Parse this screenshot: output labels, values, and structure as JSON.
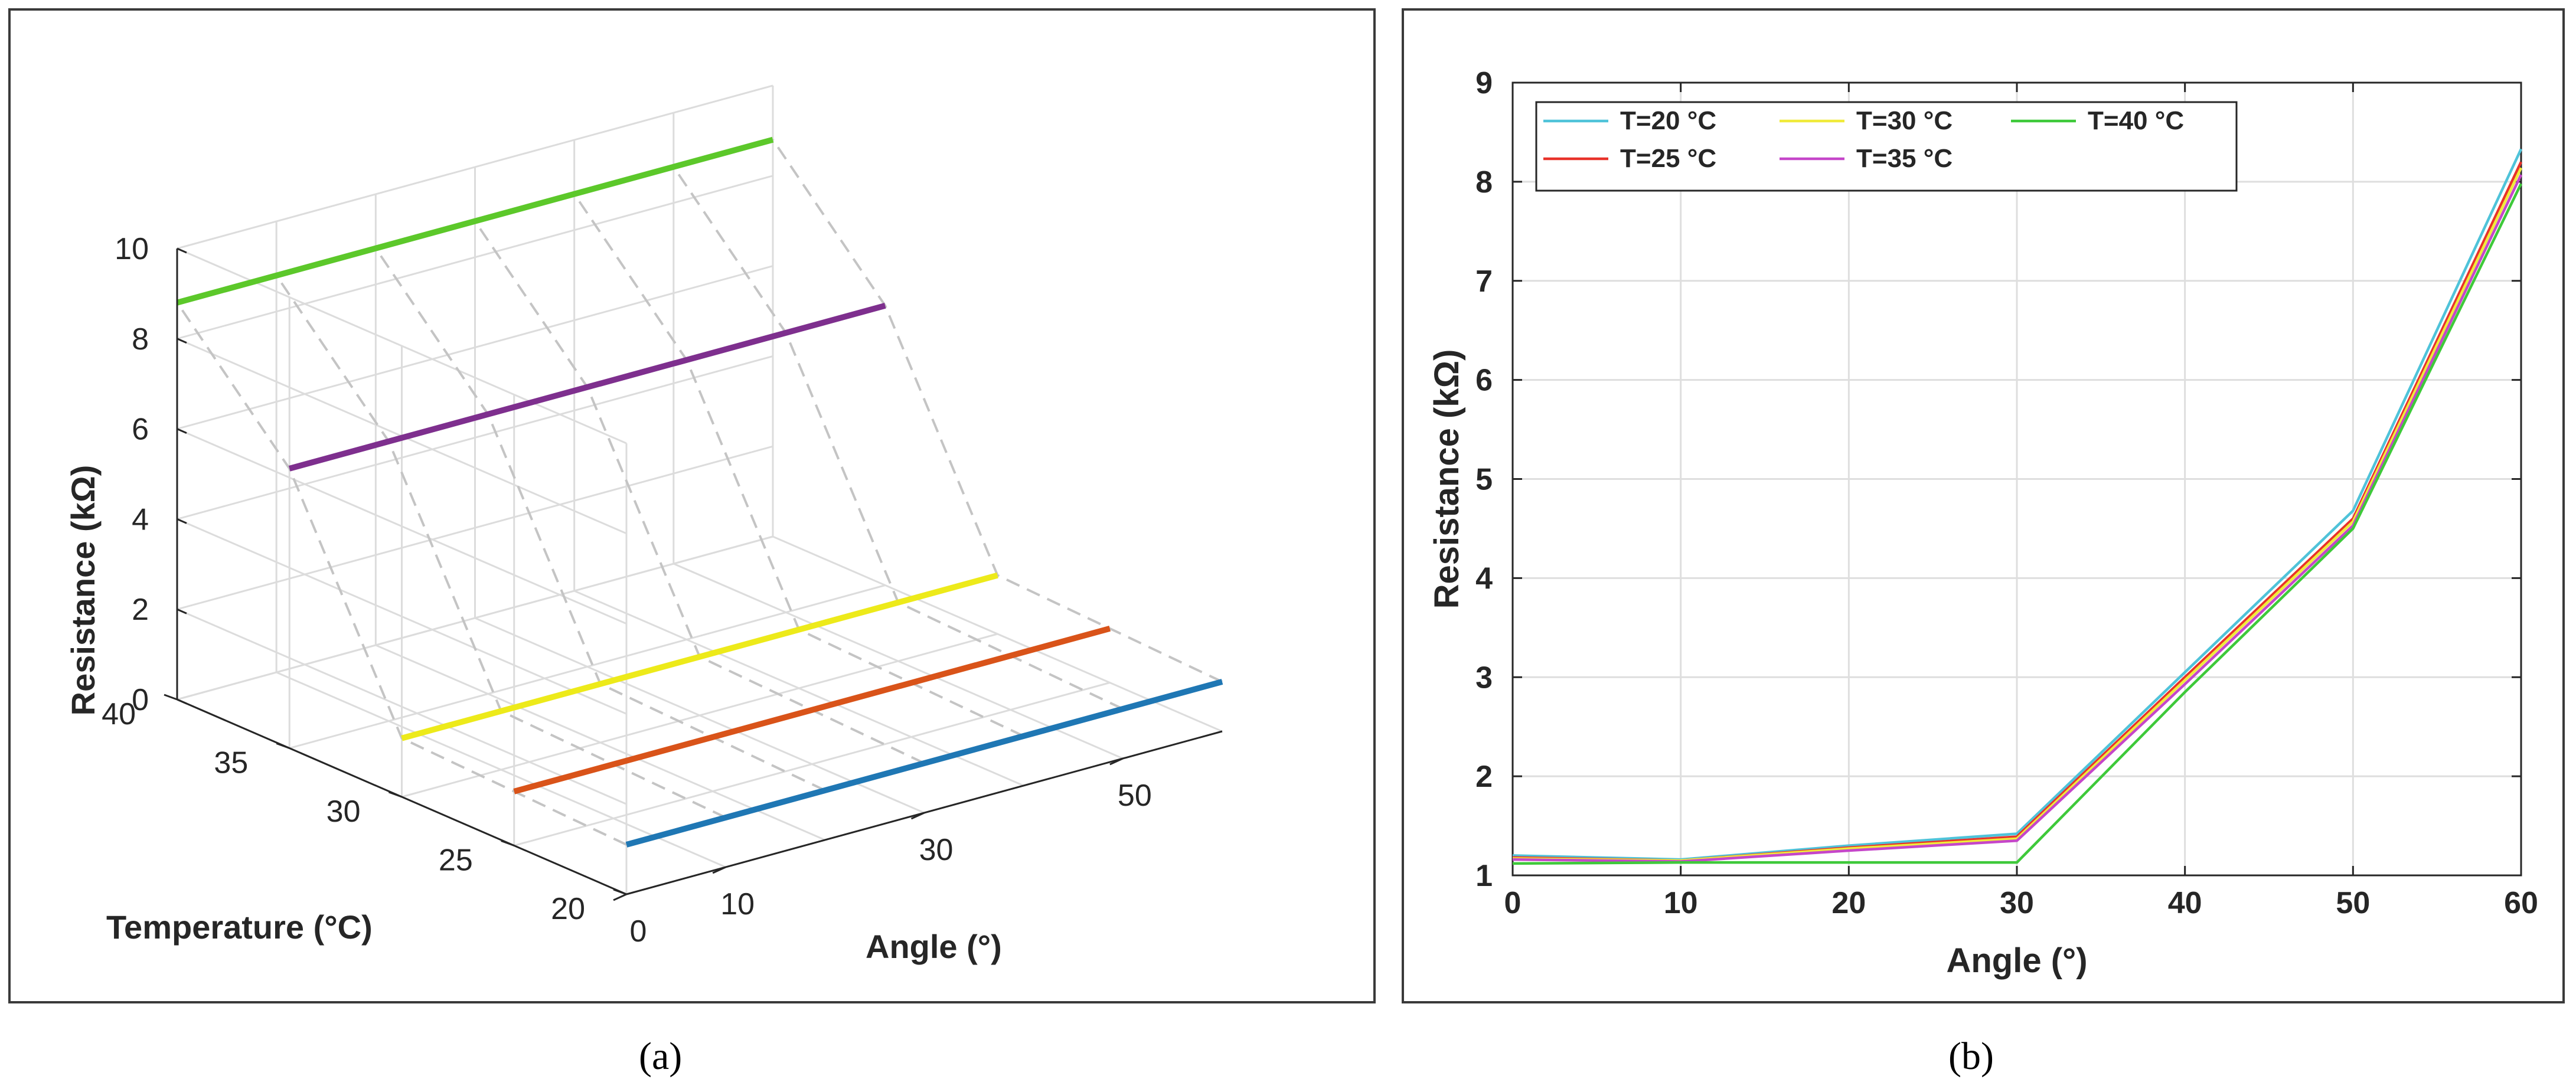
{
  "captions": {
    "a": "(a)",
    "b": "(b)"
  },
  "chart_data": [
    {
      "type": "line",
      "projection": "3d",
      "panel": "a",
      "title": "",
      "xlabel": "Angle (°)",
      "ylabel": "Temperature (°C)",
      "zlabel": "Resistance (kΩ)",
      "xlim": [
        0,
        60
      ],
      "ylim": [
        20,
        40
      ],
      "zlim": [
        0,
        10
      ],
      "x_ticks": [
        "0",
        "10",
        "30",
        "50"
      ],
      "y_ticks": [
        "20",
        "25",
        "30",
        "35",
        "40"
      ],
      "z_ticks": [
        "0",
        "2",
        "4",
        "6",
        "8",
        "10"
      ],
      "grid": true,
      "series": [
        {
          "name": "T=20 °C",
          "temperature": 20,
          "angle_range": [
            0,
            60
          ],
          "resistance": 1.1,
          "color": "#1f77b4"
        },
        {
          "name": "T=25 °C",
          "temperature": 25,
          "angle_range": [
            0,
            60
          ],
          "resistance": 1.2,
          "color": "#d95319"
        },
        {
          "name": "T=30 °C",
          "temperature": 30,
          "angle_range": [
            0,
            60
          ],
          "resistance": 1.3,
          "color": "#edea1a"
        },
        {
          "name": "T=35 °C",
          "temperature": 35,
          "angle_range": [
            0,
            60
          ],
          "resistance": 6.2,
          "color": "#7e2f8e"
        },
        {
          "name": "T=40 °C",
          "temperature": 40,
          "angle_range": [
            0,
            60
          ],
          "resistance": 8.8,
          "color": "#5cc82a"
        }
      ],
      "dashed_curves": [
        {
          "angle": 0,
          "points": [
            [
              20,
              1.1
            ],
            [
              25,
              1.2
            ],
            [
              30,
              1.3
            ],
            [
              35,
              6.2
            ],
            [
              40,
              8.8
            ]
          ]
        },
        {
          "angle": 10,
          "points": [
            [
              20,
              1.1
            ],
            [
              25,
              1.2
            ],
            [
              30,
              1.3
            ],
            [
              35,
              6.2
            ],
            [
              40,
              8.8
            ]
          ]
        },
        {
          "angle": 20,
          "points": [
            [
              20,
              1.1
            ],
            [
              25,
              1.2
            ],
            [
              30,
              1.3
            ],
            [
              35,
              6.2
            ],
            [
              40,
              8.8
            ]
          ]
        },
        {
          "angle": 30,
          "points": [
            [
              20,
              1.1
            ],
            [
              25,
              1.2
            ],
            [
              30,
              1.3
            ],
            [
              35,
              6.2
            ],
            [
              40,
              8.8
            ]
          ]
        },
        {
          "angle": 40,
          "points": [
            [
              20,
              1.1
            ],
            [
              25,
              1.2
            ],
            [
              30,
              1.3
            ],
            [
              35,
              6.2
            ],
            [
              40,
              8.8
            ]
          ]
        },
        {
          "angle": 50,
          "points": [
            [
              20,
              1.1
            ],
            [
              25,
              1.2
            ],
            [
              30,
              1.3
            ],
            [
              35,
              6.2
            ],
            [
              40,
              8.8
            ]
          ]
        },
        {
          "angle": 60,
          "points": [
            [
              20,
              1.1
            ],
            [
              25,
              1.2
            ],
            [
              30,
              1.3
            ],
            [
              35,
              6.2
            ],
            [
              40,
              8.8
            ]
          ]
        }
      ]
    },
    {
      "type": "line",
      "panel": "b",
      "title": "",
      "xlabel": "Angle (°)",
      "ylabel": "Resistance (kΩ)",
      "xlim": [
        0,
        60
      ],
      "ylim": [
        1,
        9
      ],
      "x_ticks": [
        0,
        10,
        20,
        30,
        40,
        50,
        60
      ],
      "y_ticks": [
        1,
        2,
        3,
        4,
        5,
        6,
        7,
        8,
        9
      ],
      "grid": true,
      "legend": "top-left",
      "x": [
        0,
        10,
        20,
        30,
        40,
        50,
        60
      ],
      "series": [
        {
          "name": "T=20 °C",
          "color": "#4fc3d9",
          "values": [
            1.2,
            1.16,
            1.3,
            1.42,
            3.05,
            4.68,
            8.33
          ]
        },
        {
          "name": "T=25 °C",
          "color": "#e8322a",
          "values": [
            1.18,
            1.15,
            1.28,
            1.39,
            3.0,
            4.6,
            8.2
          ]
        },
        {
          "name": "T=30 °C",
          "color": "#f0eb3a",
          "values": [
            1.17,
            1.15,
            1.27,
            1.37,
            2.97,
            4.57,
            8.14
          ]
        },
        {
          "name": "T=35 °C",
          "color": "#c546c9",
          "values": [
            1.16,
            1.14,
            1.25,
            1.35,
            2.93,
            4.53,
            8.07
          ]
        },
        {
          "name": "T=40 °C",
          "color": "#3ec93a",
          "values": [
            1.12,
            1.13,
            1.13,
            1.13,
            2.85,
            4.5,
            7.98
          ]
        }
      ]
    }
  ]
}
